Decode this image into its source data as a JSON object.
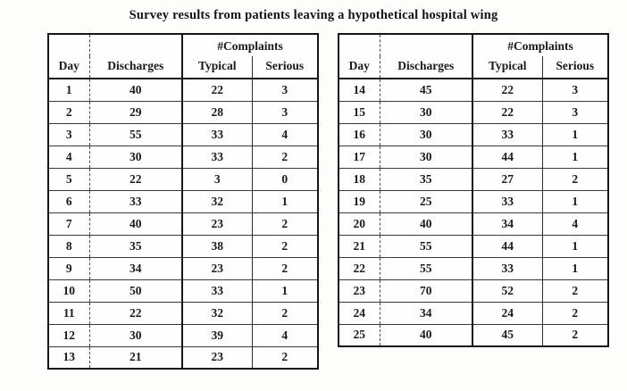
{
  "title": "Survey results from patients leaving a hypothetical hospital wing",
  "tables": [
    {
      "headers": {
        "day": "Day",
        "discharges": "Discharges",
        "complaints": "#Complaints",
        "typical": "Typical",
        "serious": "Serious"
      },
      "rows": [
        [
          1,
          40,
          22,
          3
        ],
        [
          2,
          29,
          28,
          3
        ],
        [
          3,
          55,
          33,
          4
        ],
        [
          4,
          30,
          33,
          2
        ],
        [
          5,
          22,
          3,
          0
        ],
        [
          6,
          33,
          32,
          1
        ],
        [
          7,
          40,
          23,
          2
        ],
        [
          8,
          35,
          38,
          2
        ],
        [
          9,
          34,
          23,
          2
        ],
        [
          10,
          50,
          33,
          1
        ],
        [
          11,
          22,
          32,
          2
        ],
        [
          12,
          30,
          39,
          4
        ],
        [
          13,
          21,
          23,
          2
        ]
      ]
    },
    {
      "headers": {
        "day": "Day",
        "discharges": "Discharges",
        "complaints": "#Complaints",
        "typical": "Typical",
        "serious": "Serious"
      },
      "rows": [
        [
          14,
          45,
          22,
          3
        ],
        [
          15,
          30,
          22,
          3
        ],
        [
          16,
          30,
          33,
          1
        ],
        [
          17,
          30,
          44,
          1
        ],
        [
          18,
          35,
          27,
          2
        ],
        [
          19,
          25,
          33,
          1
        ],
        [
          20,
          40,
          34,
          4
        ],
        [
          21,
          55,
          44,
          1
        ],
        [
          22,
          55,
          33,
          1
        ],
        [
          23,
          70,
          52,
          2
        ],
        [
          24,
          34,
          24,
          2
        ],
        [
          25,
          40,
          45,
          2
        ]
      ]
    }
  ]
}
